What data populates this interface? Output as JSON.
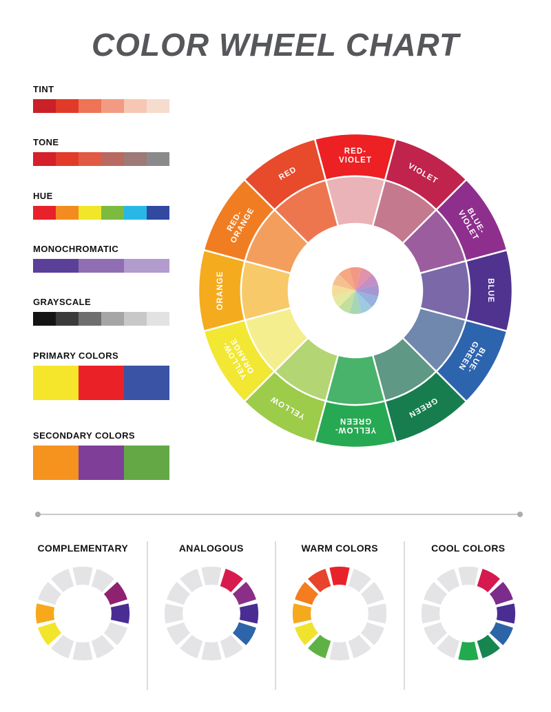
{
  "title": "COLOR WHEEL CHART",
  "sidebar": {
    "groups": [
      {
        "label": "TINT",
        "tall": false,
        "colors": [
          "#c92127",
          "#e23a28",
          "#ef7355",
          "#f29b82",
          "#f6c7b2",
          "#f5dccd"
        ]
      },
      {
        "label": "TONE",
        "tall": false,
        "colors": [
          "#d4202a",
          "#e23b2a",
          "#e05a44",
          "#b96a60",
          "#9d7a76",
          "#8a8a8c"
        ]
      },
      {
        "label": "HUE",
        "tall": false,
        "colors": [
          "#e8212b",
          "#f28c20",
          "#f2e62b",
          "#7cba40",
          "#29b8e5",
          "#3149a1"
        ]
      },
      {
        "label": "MONOCHROMATIC",
        "tall": false,
        "colors": [
          "#5b4099",
          "#8f6eb4",
          "#b29bcd"
        ]
      },
      {
        "label": "GRAYSCALE",
        "tall": false,
        "colors": [
          "#141414",
          "#3a3a3a",
          "#6e6e6e",
          "#a5a5a5",
          "#c8c8c8",
          "#e2e2e2"
        ]
      },
      {
        "label": "PRIMARY COLORS",
        "tall": true,
        "colors": [
          "#f5e62b",
          "#ea2227",
          "#3a53a4"
        ]
      },
      {
        "label": "SECONDARY COLORS",
        "tall": true,
        "colors": [
          "#f6921e",
          "#7f3f98",
          "#63a845"
        ]
      }
    ]
  },
  "wheel": {
    "segments": [
      {
        "label": "RED-VIOLET",
        "lines": [
          "RED-",
          "VIOLET"
        ],
        "outer": "#ed2024",
        "inner": "#eab3b7"
      },
      {
        "label": "VIOLET",
        "lines": [
          "VIOLET"
        ],
        "outer": "#c0234c",
        "inner": "#c5798f"
      },
      {
        "label": "BLUE-VIOLET",
        "lines": [
          "BLUE-",
          "VIOLET"
        ],
        "outer": "#8e2f8d",
        "inner": "#9c5d9e"
      },
      {
        "label": "BLUE",
        "lines": [
          "BLUE"
        ],
        "outer": "#50338f",
        "inner": "#7a68a8"
      },
      {
        "label": "BLUE-GREEN",
        "lines": [
          "BLUE-",
          "GREEN"
        ],
        "outer": "#2d64ae",
        "inner": "#7087ae"
      },
      {
        "label": "GREEN",
        "lines": [
          "GREEN"
        ],
        "outer": "#177d4e",
        "inner": "#5f9884"
      },
      {
        "label": "YELLOW-GREEN",
        "lines": [
          "YELLOW-",
          "GREEN"
        ],
        "outer": "#27a852",
        "inner": "#49b26b"
      },
      {
        "label": "YELLOW",
        "lines": [
          "YELLOW"
        ],
        "outer": "#9dcb4a",
        "inner": "#b3d573"
      },
      {
        "label": "YELLOW-ORANGE",
        "lines": [
          "YELLOW-",
          "ORANGE"
        ],
        "outer": "#f2e733",
        "inner": "#f5ee8e"
      },
      {
        "label": "ORANGE",
        "lines": [
          "ORANGE"
        ],
        "outer": "#f5ab1e",
        "inner": "#f8c968"
      },
      {
        "label": "RED-ORANGE",
        "lines": [
          "RED-",
          "ORANGE"
        ],
        "outer": "#f07d22",
        "inner": "#f49e5d"
      },
      {
        "label": "RED",
        "lines": [
          "RED"
        ],
        "outer": "#e84a2c",
        "inner": "#ee764f"
      }
    ],
    "center_colors": [
      "#f29884",
      "#e292ab",
      "#c48fc4",
      "#a697d3",
      "#98b1de",
      "#9ecadf",
      "#a8d6b4",
      "#c2dfa0",
      "#e5e9a2",
      "#f4dd9b",
      "#f5c08f",
      "#f4a983"
    ]
  },
  "schemes": [
    {
      "label": "COMPLEMENTARY",
      "segments": [
        null,
        null,
        "#8e2270",
        "#4a2d92",
        null,
        null,
        null,
        null,
        "#f2e52c",
        "#f7a81b",
        null,
        null
      ]
    },
    {
      "label": "ANALOGOUS",
      "segments": [
        null,
        "#d81b4e",
        "#8b2e86",
        "#4a2d92",
        "#2e64a9",
        null,
        null,
        null,
        null,
        null,
        null,
        null
      ]
    },
    {
      "label": "WARM COLORS",
      "segments": [
        "#e8222a",
        null,
        null,
        null,
        null,
        null,
        null,
        "#5eb245",
        "#f0e32d",
        "#f5a91c",
        "#f47d20",
        "#e8432b"
      ]
    },
    {
      "label": "COOL COLORS",
      "segments": [
        null,
        "#d41a4e",
        "#7c2d8c",
        "#4a2d92",
        "#2d64a8",
        "#17854f",
        "#22aa4e",
        null,
        null,
        null,
        null,
        null
      ]
    }
  ],
  "colors": {
    "neutral_segment": "#e4e4e6",
    "divider": "#c9c9c9",
    "title_text": "#56575a"
  }
}
